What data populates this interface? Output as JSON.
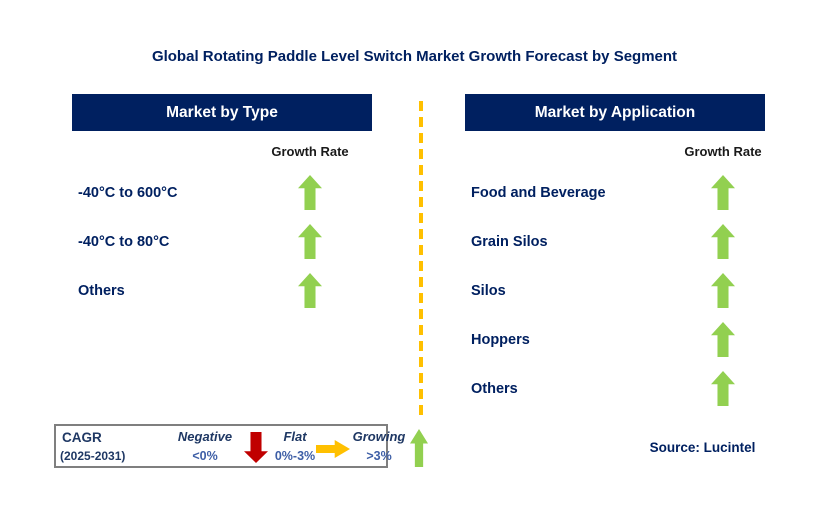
{
  "title": "Global Rotating Paddle Level Switch Market Growth Forecast by Segment",
  "panels": {
    "type": {
      "header": "Market by Type",
      "growth_rate_label": "Growth Rate",
      "items": [
        {
          "label": "-40°C to 600°C",
          "growth": "growing"
        },
        {
          "label": "-40°C to 80°C",
          "growth": "growing"
        },
        {
          "label": "Others",
          "growth": "growing"
        }
      ]
    },
    "application": {
      "header": "Market by Application",
      "growth_rate_label": "Growth Rate",
      "items": [
        {
          "label": "Food and Beverage",
          "growth": "growing"
        },
        {
          "label": "Grain Silos",
          "growth": "growing"
        },
        {
          "label": "Silos",
          "growth": "growing"
        },
        {
          "label": "Hoppers",
          "growth": "growing"
        },
        {
          "label": "Others",
          "growth": "growing"
        }
      ]
    }
  },
  "legend": {
    "cagr_label": "CAGR",
    "cagr_period": "(2025-2031)",
    "negative": {
      "label": "Negative",
      "range": "<0%",
      "icon": "down-arrow"
    },
    "flat": {
      "label": "Flat",
      "range": "0%-3%",
      "icon": "right-arrow"
    },
    "growing": {
      "label": "Growing",
      "range": ">3%",
      "icon": "up-arrow"
    }
  },
  "source": "Source: Lucintel",
  "colors": {
    "navy": "#002060",
    "text-navy": "#1F3864",
    "value-blue": "#3D5EA6",
    "green": "#92D050",
    "red": "#C00000",
    "gold": "#FFC000",
    "legend-border": "#7F7F7F"
  }
}
